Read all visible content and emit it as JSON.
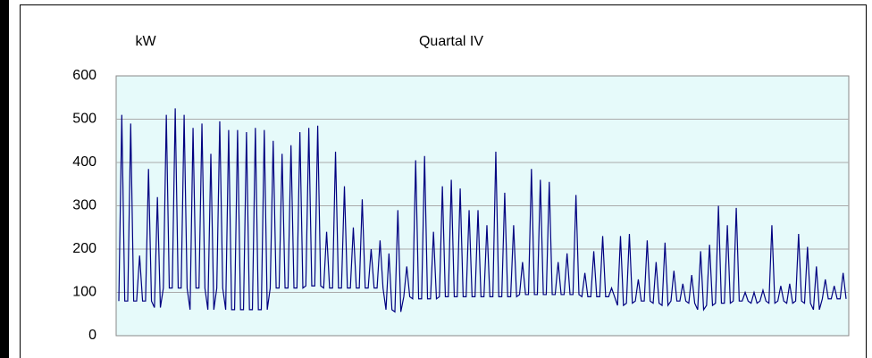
{
  "chart_data": {
    "type": "line",
    "title": "Quartal IV",
    "y_label": "kW",
    "color": "#000080",
    "ylim": [
      0,
      600
    ],
    "yticks": [
      0,
      100,
      200,
      300,
      400,
      500,
      600
    ],
    "grid": true,
    "values": [
      80,
      510,
      80,
      80,
      490,
      80,
      80,
      185,
      80,
      80,
      385,
      80,
      65,
      320,
      65,
      110,
      510,
      110,
      110,
      525,
      110,
      110,
      510,
      110,
      60,
      480,
      110,
      110,
      490,
      110,
      60,
      420,
      60,
      110,
      495,
      110,
      60,
      475,
      60,
      60,
      475,
      60,
      60,
      470,
      60,
      60,
      480,
      60,
      60,
      475,
      60,
      110,
      450,
      110,
      110,
      420,
      110,
      110,
      440,
      110,
      110,
      470,
      110,
      115,
      480,
      115,
      115,
      485,
      115,
      110,
      240,
      110,
      110,
      425,
      110,
      110,
      345,
      110,
      110,
      250,
      110,
      110,
      315,
      110,
      110,
      200,
      110,
      110,
      220,
      110,
      60,
      190,
      60,
      55,
      290,
      55,
      90,
      160,
      90,
      85,
      405,
      85,
      85,
      415,
      85,
      85,
      240,
      85,
      90,
      345,
      90,
      90,
      360,
      90,
      90,
      340,
      90,
      90,
      290,
      90,
      90,
      290,
      90,
      90,
      255,
      90,
      90,
      425,
      90,
      90,
      330,
      90,
      90,
      255,
      90,
      95,
      170,
      95,
      95,
      385,
      95,
      95,
      360,
      95,
      95,
      355,
      95,
      95,
      170,
      95,
      95,
      190,
      95,
      95,
      325,
      95,
      90,
      145,
      90,
      90,
      195,
      90,
      90,
      230,
      90,
      90,
      110,
      90,
      70,
      230,
      70,
      75,
      235,
      75,
      80,
      130,
      80,
      80,
      220,
      80,
      75,
      170,
      75,
      70,
      215,
      70,
      80,
      150,
      80,
      80,
      120,
      80,
      75,
      140,
      75,
      60,
      195,
      60,
      70,
      210,
      70,
      75,
      300,
      75,
      75,
      255,
      75,
      80,
      295,
      80,
      80,
      100,
      80,
      75,
      100,
      75,
      80,
      105,
      80,
      75,
      255,
      75,
      80,
      115,
      80,
      75,
      120,
      75,
      80,
      235,
      80,
      75,
      205,
      75,
      60,
      160,
      60,
      85,
      130,
      85,
      85,
      115,
      85,
      85,
      145,
      85
    ]
  }
}
